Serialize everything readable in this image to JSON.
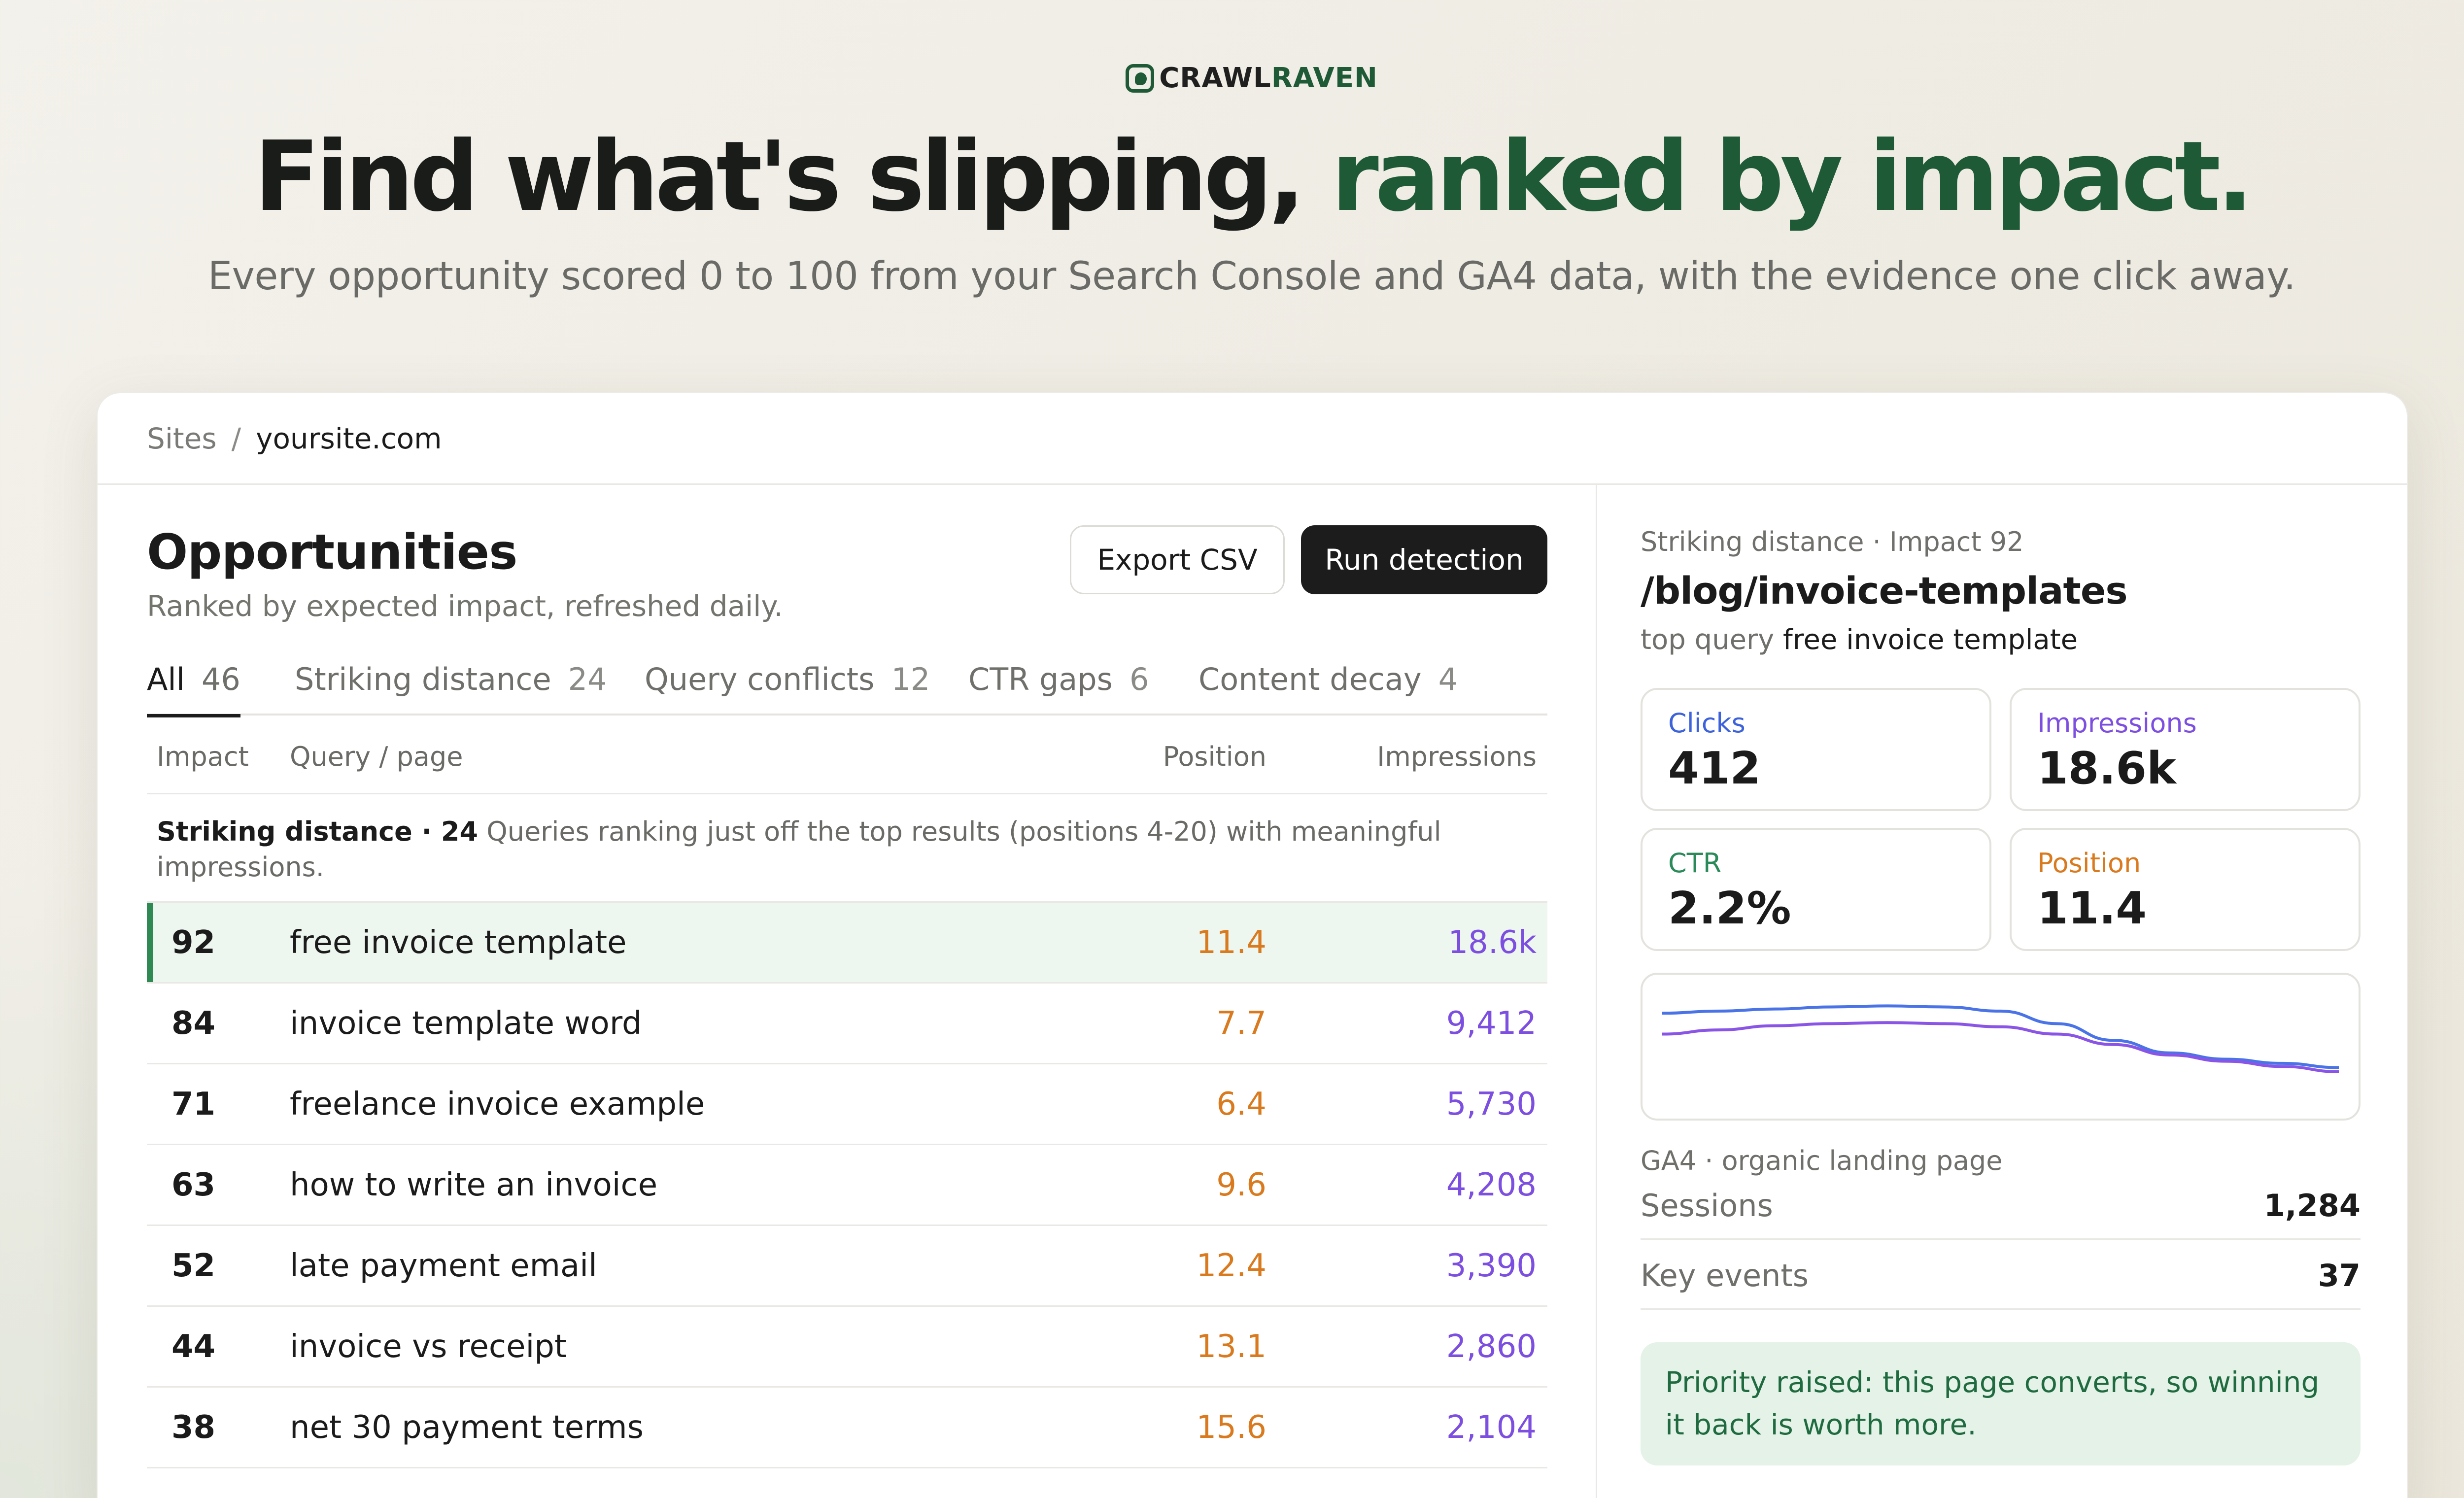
{
  "brand": {
    "part1": "CRAWL",
    "part2": "RAVEN",
    "logo_icon": "raven-logo-icon"
  },
  "hero": {
    "title_plain": "Find what's slipping,",
    "title_highlight": "ranked by impact.",
    "subtitle": "Every opportunity scored 0 to 100 from your Search Console and GA4 data, with the evidence one click away."
  },
  "breadcrumb": {
    "root": "Sites",
    "separator": "/",
    "current": "yoursite.com"
  },
  "opportunities": {
    "title": "Opportunities",
    "subtitle": "Ranked by expected impact, refreshed daily.",
    "export_label": "Export CSV",
    "run_label": "Run detection",
    "tabs": [
      {
        "label": "All",
        "count": "46",
        "active": true
      },
      {
        "label": "Striking distance",
        "count": "24"
      },
      {
        "label": "Query conflicts",
        "count": "12"
      },
      {
        "label": "CTR gaps",
        "count": "6"
      },
      {
        "label": "Content decay",
        "count": "4"
      }
    ],
    "columns": {
      "impact": "Impact",
      "query": "Query / page",
      "position": "Position",
      "impressions": "Impressions"
    },
    "group": {
      "name": "Striking distance · 24",
      "description": "Queries ranking just off the top results (positions 4-20) with meaningful impressions."
    },
    "rows": [
      {
        "impact": "92",
        "query": "free invoice template",
        "position": "11.4",
        "impressions": "18.6k",
        "selected": true
      },
      {
        "impact": "84",
        "query": "invoice template word",
        "position": "7.7",
        "impressions": "9,412"
      },
      {
        "impact": "71",
        "query": "freelance invoice example",
        "position": "6.4",
        "impressions": "5,730"
      },
      {
        "impact": "63",
        "query": "how to write an invoice",
        "position": "9.6",
        "impressions": "4,208"
      },
      {
        "impact": "52",
        "query": "late payment email",
        "position": "12.4",
        "impressions": "3,390"
      },
      {
        "impact": "44",
        "query": "invoice vs receipt",
        "position": "13.1",
        "impressions": "2,860"
      },
      {
        "impact": "38",
        "query": "net 30 payment terms",
        "position": "15.6",
        "impressions": "2,104"
      }
    ]
  },
  "detail": {
    "kicker": "Striking distance · Impact 92",
    "page": "/blog/invoice-templates",
    "top_query_label": "top query",
    "top_query": "free invoice template",
    "stats": {
      "clicks": {
        "label": "Clicks",
        "value": "412"
      },
      "impressions": {
        "label": "Impressions",
        "value": "18.6k"
      },
      "ctr": {
        "label": "CTR",
        "value": "2.2%"
      },
      "position": {
        "label": "Position",
        "value": "11.4"
      }
    },
    "ga4_label": "GA4 · organic landing page",
    "sessions": {
      "label": "Sessions",
      "value": "1,284"
    },
    "key_events": {
      "label": "Key events",
      "value": "37"
    },
    "note": "Priority raised: this page converts, so winning it back is worth more."
  },
  "chart_data": {
    "type": "line",
    "title": "",
    "xlabel": "",
    "ylabel": "",
    "x": [
      0,
      1,
      2,
      3,
      4,
      5,
      6,
      7,
      8,
      9,
      10,
      11,
      12
    ],
    "series": [
      {
        "values": [
          0.82,
          0.84,
          0.86,
          0.88,
          0.89,
          0.88,
          0.84,
          0.72,
          0.56,
          0.44,
          0.38,
          0.34,
          0.3
        ],
        "color": "#4a73e8"
      },
      {
        "values": [
          0.62,
          0.66,
          0.7,
          0.72,
          0.73,
          0.72,
          0.69,
          0.62,
          0.52,
          0.42,
          0.36,
          0.31,
          0.26
        ],
        "color": "#8a55e6"
      }
    ],
    "colors": {
      "accent": "#1e5a36",
      "position": "#d97a1e",
      "impressions": "#7d4fe0"
    }
  }
}
